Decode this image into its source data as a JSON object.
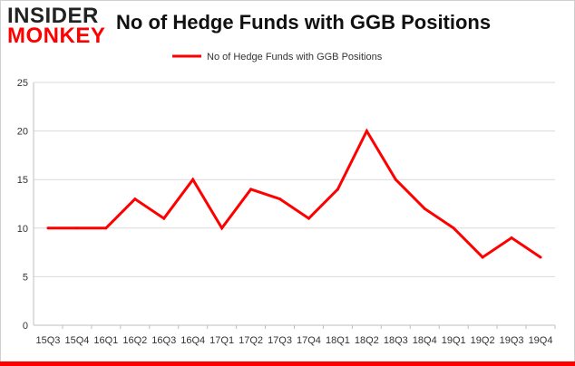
{
  "logo": {
    "line1": "INSIDER",
    "line2": "MONKEY",
    "icon": "insider-monkey-logo"
  },
  "chart_data": {
    "type": "line",
    "title": "No of Hedge Funds with GGB Positions",
    "xlabel": "",
    "ylabel": "",
    "x": [
      "15Q3",
      "15Q4",
      "16Q1",
      "16Q2",
      "16Q3",
      "16Q4",
      "17Q1",
      "17Q2",
      "17Q3",
      "17Q4",
      "18Q1",
      "18Q2",
      "18Q3",
      "18Q4",
      "19Q1",
      "19Q2",
      "19Q3",
      "19Q4"
    ],
    "series": [
      {
        "name": "No of Hedge Funds with GGB Positions",
        "color": "#ff0000",
        "values": [
          10,
          10,
          10,
          13,
          11,
          15,
          10,
          14,
          13,
          11,
          14,
          20,
          15,
          12,
          10,
          7,
          9,
          7
        ]
      }
    ],
    "ylim": [
      0,
      25
    ],
    "yticks": [
      0,
      5,
      10,
      15,
      20,
      25
    ],
    "grid": "horizontal",
    "legend": "top-center",
    "colors": {
      "line": "#ff0000",
      "grid": "#d9d9d9",
      "axis": "#bfbfbf"
    }
  }
}
